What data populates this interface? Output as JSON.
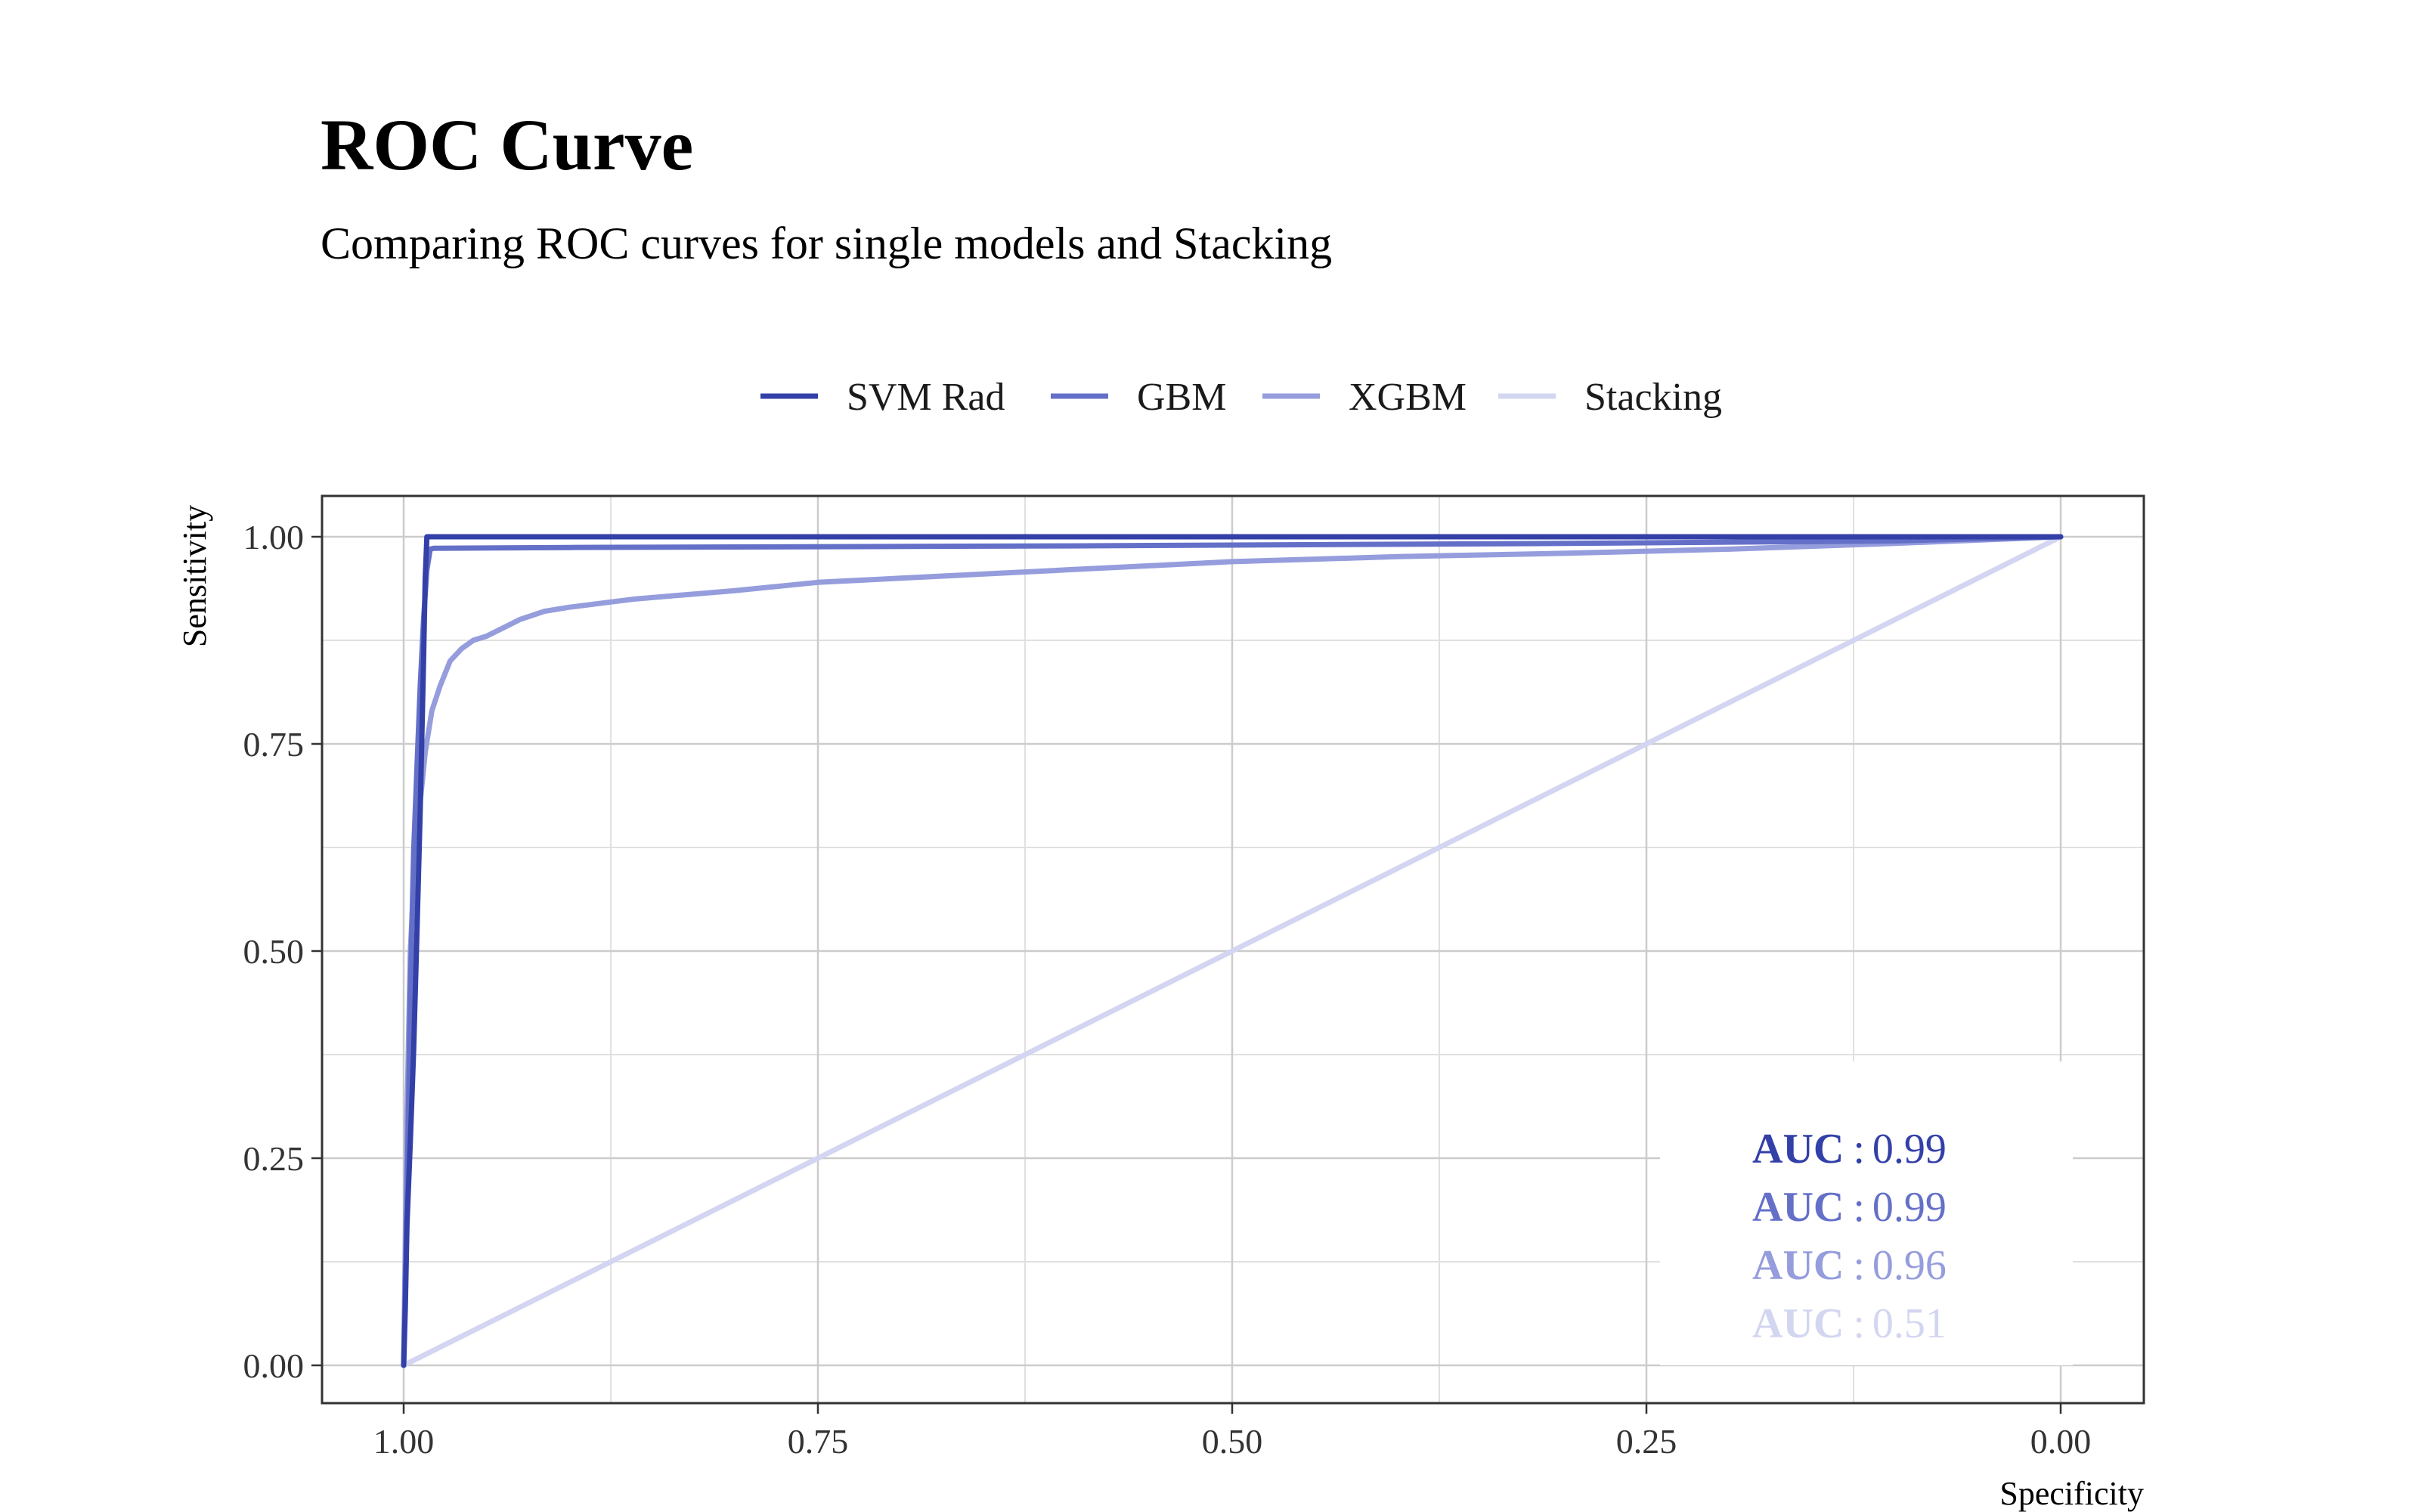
{
  "chart_data": {
    "type": "line",
    "title": "ROC Curve",
    "subtitle": "Comparing ROC curves for single models and Stacking",
    "xlabel": "Specificity",
    "ylabel": "Sensitivity",
    "x_reversed": true,
    "xlim": [
      1.0,
      0.0
    ],
    "ylim": [
      0.0,
      1.0
    ],
    "x_ticks": [
      "1.00",
      "0.75",
      "0.50",
      "0.25",
      "0.00"
    ],
    "y_ticks": [
      "0.00",
      "0.25",
      "0.50",
      "0.75",
      "1.00"
    ],
    "grid": true,
    "legend_position": "top",
    "auc_key": "AUC",
    "series": [
      {
        "name": "SVM Rad",
        "color": "#3340a8",
        "auc": "0.99",
        "x": [
          1.0,
          0.999,
          0.998,
          0.996,
          0.994,
          0.992,
          0.99,
          0.988,
          0.987,
          0.986,
          0.0
        ],
        "y": [
          0.0,
          0.07,
          0.17,
          0.27,
          0.38,
          0.52,
          0.67,
          0.85,
          0.95,
          1.0,
          1.0
        ]
      },
      {
        "name": "GBM",
        "color": "#6470c8",
        "auc": "0.99",
        "x": [
          1.0,
          0.998,
          0.996,
          0.994,
          0.992,
          0.99,
          0.988,
          0.986,
          0.984,
          0.982,
          0.9,
          0.6,
          0.3,
          0.1,
          0.0
        ],
        "y": [
          0.0,
          0.2,
          0.45,
          0.62,
          0.72,
          0.82,
          0.9,
          0.96,
          0.985,
          0.986,
          0.987,
          0.989,
          0.992,
          0.995,
          1.0
        ]
      },
      {
        "name": "XGBM",
        "color": "#959ddd",
        "auc": "0.96",
        "x": [
          1.0,
          0.998,
          0.996,
          0.993,
          0.99,
          0.987,
          0.983,
          0.978,
          0.972,
          0.965,
          0.958,
          0.95,
          0.94,
          0.93,
          0.915,
          0.9,
          0.88,
          0.86,
          0.83,
          0.8,
          0.75,
          0.7,
          0.65,
          0.6,
          0.55,
          0.5,
          0.45,
          0.4,
          0.3,
          0.2,
          0.1,
          0.0
        ],
        "y": [
          0.0,
          0.3,
          0.5,
          0.62,
          0.68,
          0.74,
          0.79,
          0.82,
          0.85,
          0.865,
          0.875,
          0.88,
          0.89,
          0.9,
          0.91,
          0.915,
          0.92,
          0.925,
          0.93,
          0.935,
          0.945,
          0.95,
          0.955,
          0.96,
          0.965,
          0.97,
          0.973,
          0.976,
          0.98,
          0.985,
          0.992,
          1.0
        ]
      },
      {
        "name": "Stacking",
        "color": "#d3d6f0",
        "auc": "0.51",
        "x": [
          1.0,
          0.0
        ],
        "y": [
          0.0,
          1.0
        ]
      }
    ]
  }
}
